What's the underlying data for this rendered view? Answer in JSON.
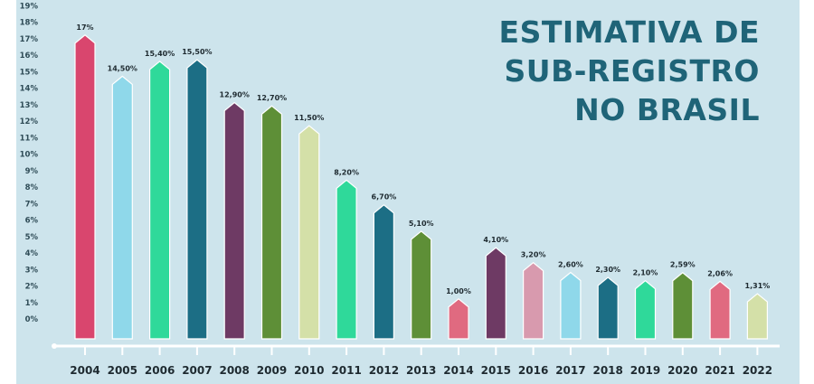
{
  "title_lines": [
    "ESTIMATIVA DE",
    "SUB-REGISTRO",
    "NO BRASIL"
  ],
  "chart_data": {
    "type": "bar",
    "title": "ESTIMATIVA DE SUB-REGISTRO NO BRASIL",
    "xlabel": "",
    "ylabel": "",
    "categories": [
      "2004",
      "2005",
      "2006",
      "2007",
      "2008",
      "2009",
      "2010",
      "2011",
      "2012",
      "2013",
      "2014",
      "2015",
      "2016",
      "2017",
      "2018",
      "2019",
      "2020",
      "2021",
      "2022"
    ],
    "values": [
      17,
      14.5,
      15.4,
      15.5,
      12.9,
      12.7,
      11.5,
      8.2,
      6.7,
      5.1,
      1.0,
      4.1,
      3.2,
      2.6,
      2.3,
      2.1,
      2.59,
      2.06,
      1.31
    ],
    "data_labels": [
      "17%",
      "14,50%",
      "15,40%",
      "15,50%",
      "12,90%",
      "12,70%",
      "11,50%",
      "8,20%",
      "6,70%",
      "5,10%",
      "1,00%",
      "4,10%",
      "3,20%",
      "2,60%",
      "2,30%",
      "2,10%",
      "2,59%",
      "2,06%",
      "1,31%"
    ],
    "y_ticks": [
      "0%",
      "1%",
      "2%",
      "3%",
      "4%",
      "5%",
      "6%",
      "7%",
      "8%",
      "9%",
      "10%",
      "11%",
      "12%",
      "13%",
      "14%",
      "15%",
      "16%",
      "17%",
      "18%",
      "19%"
    ],
    "ylim": [
      0,
      19
    ],
    "grid": false,
    "colors": [
      "#d9466e",
      "#8fd8ea",
      "#2fd99a",
      "#1c6e85",
      "#6e3a64",
      "#5e8f37",
      "#d4e0a8",
      "#2fd99a",
      "#1c6e85",
      "#5e8f37",
      "#e06a80",
      "#6e3a64",
      "#d89aae",
      "#8fd8ea",
      "#1c6e85",
      "#2fd99a",
      "#5e8f37",
      "#e06a80",
      "#d4e0a8"
    ],
    "axis_color": "#ffffff"
  }
}
